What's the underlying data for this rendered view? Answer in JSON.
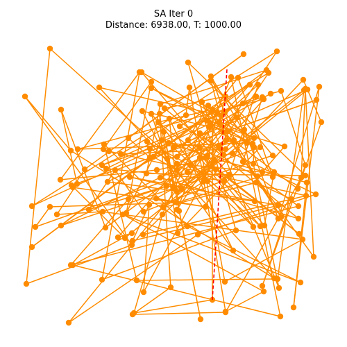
{
  "chart_data": {
    "type": "line",
    "title": "SA Iter 0",
    "subtitle": "Distance: 6938.00, T: 1000.00",
    "xlabel": "",
    "ylabel": "",
    "axes_visible": false,
    "grid": false,
    "colors": {
      "route": "#ff8c00",
      "highlight": "#ff0000"
    },
    "route": [
      [
        72,
        70
      ],
      [
        38,
        409
      ],
      [
        190,
        353
      ],
      [
        36,
        139
      ],
      [
        102,
        217
      ],
      [
        395,
        401
      ],
      [
        143,
        126
      ],
      [
        319,
        167
      ],
      [
        360,
        122
      ],
      [
        46,
        356
      ],
      [
        384,
        101
      ],
      [
        231,
        150
      ],
      [
        211,
        250
      ],
      [
        440,
        253
      ],
      [
        271,
        90
      ],
      [
        340,
        332
      ],
      [
        147,
        403
      ],
      [
        201,
        104
      ],
      [
        87,
        259
      ],
      [
        226,
        245
      ],
      [
        335,
        221
      ],
      [
        455,
        280
      ],
      [
        285,
        338
      ],
      [
        99,
        465
      ],
      [
        322,
        191
      ],
      [
        399,
        74
      ],
      [
        46,
        297
      ],
      [
        303,
        178
      ],
      [
        410,
        211
      ],
      [
        378,
        248
      ],
      [
        255,
        236
      ],
      [
        326,
        202
      ],
      [
        304,
        116
      ],
      [
        393,
        224
      ],
      [
        88,
        325
      ],
      [
        317,
        214
      ],
      [
        380,
        143
      ],
      [
        112,
        215
      ],
      [
        356,
        206
      ],
      [
        316,
        176
      ],
      [
        325,
        139
      ],
      [
        237,
        156
      ],
      [
        430,
        315
      ],
      [
        231,
        256
      ],
      [
        341,
        169
      ],
      [
        155,
        262
      ],
      [
        367,
        290
      ],
      [
        212,
        204
      ],
      [
        216,
        227
      ],
      [
        185,
        199
      ],
      [
        351,
        78
      ],
      [
        122,
        244
      ],
      [
        105,
        270
      ],
      [
        296,
        298
      ],
      [
        225,
        286
      ],
      [
        304,
        240
      ],
      [
        255,
        276
      ],
      [
        218,
        164
      ],
      [
        299,
        261
      ],
      [
        437,
        115
      ],
      [
        463,
        176
      ],
      [
        429,
        272
      ],
      [
        298,
        174
      ],
      [
        369,
        139
      ],
      [
        153,
        243
      ],
      [
        323,
        260
      ],
      [
        207,
        305
      ],
      [
        166,
        245
      ],
      [
        128,
        302
      ],
      [
        240,
        268
      ],
      [
        287,
        212
      ],
      [
        371,
        254
      ],
      [
        430,
        297
      ],
      [
        102,
        382
      ],
      [
        185,
        287
      ],
      [
        311,
        244
      ],
      [
        431,
        337
      ],
      [
        228,
        176
      ],
      [
        306,
        158
      ],
      [
        306,
        432
      ],
      [
        193,
        451
      ],
      [
        234,
        309
      ],
      [
        288,
        192
      ],
      [
        322,
        223
      ],
      [
        206,
        338
      ],
      [
        441,
        282
      ],
      [
        157,
        218
      ],
      [
        149,
        215
      ],
      [
        218,
        118
      ],
      [
        182,
        307
      ],
      [
        233,
        202
      ],
      [
        299,
        224
      ],
      [
        243,
        206
      ],
      [
        325,
        215
      ],
      [
        174,
        222
      ],
      [
        268,
        166
      ],
      [
        273,
        126
      ],
      [
        324,
        406
      ],
      [
        436,
        345
      ],
      [
        148,
        305
      ],
      [
        82,
        309
      ],
      [
        111,
        265
      ],
      [
        88,
        158
      ],
      [
        152,
        328
      ],
      [
        274,
        238
      ],
      [
        365,
        327
      ],
      [
        288,
        227
      ],
      [
        325,
        449
      ],
      [
        380,
        420
      ],
      [
        177,
        309
      ],
      [
        433,
        407
      ],
      [
        270,
        326
      ],
      [
        150,
        208
      ],
      [
        197,
        404
      ],
      [
        400,
        402
      ],
      [
        438,
        130
      ],
      [
        308,
        232
      ],
      [
        207,
        421
      ],
      [
        215,
        295
      ],
      [
        191,
        347
      ],
      [
        401,
        296
      ],
      [
        187,
        255
      ],
      [
        250,
        270
      ],
      [
        236,
        190
      ],
      [
        289,
        460
      ],
      [
        258,
        304
      ],
      [
        244,
        171
      ],
      [
        336,
        361
      ],
      [
        255,
        245
      ],
      [
        221,
        226
      ],
      [
        456,
        144
      ],
      [
        103,
        267
      ],
      [
        180,
        343
      ],
      [
        443,
        129
      ],
      [
        250,
        213
      ],
      [
        375,
        326
      ],
      [
        271,
        202
      ],
      [
        343,
        112
      ],
      [
        393,
        255
      ],
      [
        352,
        187
      ],
      [
        401,
        315
      ],
      [
        460,
        125
      ],
      [
        423,
        443
      ],
      [
        442,
        263
      ],
      [
        297,
        226
      ],
      [
        381,
        325
      ],
      [
        395,
        248
      ],
      [
        255,
        292
      ],
      [
        72,
        298
      ],
      [
        51,
        327
      ],
      [
        375,
        212
      ],
      [
        256,
        336
      ],
      [
        230,
        164
      ],
      [
        246,
        414
      ],
      [
        191,
        453
      ],
      [
        325,
        450
      ],
      [
        434,
        256
      ],
      [
        440,
        128
      ],
      [
        452,
        370
      ],
      [
        291,
        147
      ],
      [
        402,
        415
      ],
      [
        365,
        236
      ],
      [
        366,
        212
      ],
      [
        324,
        162
      ],
      [
        170,
        342
      ],
      [
        190,
        336
      ],
      [
        105,
        382
      ],
      [
        404,
        456
      ],
      [
        333,
        111
      ],
      [
        255,
        302
      ],
      [
        387,
        105
      ],
      [
        259,
        182
      ],
      [
        315,
        210
      ],
      [
        366,
        199
      ],
      [
        218,
        127
      ],
      [
        364,
        207
      ],
      [
        303,
        180
      ],
      [
        302,
        183
      ],
      [
        390,
        135
      ],
      [
        405,
        131
      ],
      [
        440,
        238
      ],
      [
        378,
        412
      ],
      [
        420,
        287
      ],
      [
        369,
        263
      ],
      [
        235,
        299
      ],
      [
        293,
        262
      ],
      [
        313,
        162
      ],
      [
        378,
        140
      ],
      [
        350,
        233
      ],
      [
        304,
        110
      ],
      [
        351,
        189
      ],
      [
        204,
        104
      ],
      [
        330,
        252
      ],
      [
        372,
        122
      ],
      [
        255,
        226
      ],
      [
        300,
        152
      ],
      [
        405,
        313
      ],
      [
        329,
        189
      ],
      [
        205,
        160
      ],
      [
        262,
        272
      ],
      [
        337,
        202
      ],
      [
        241,
        229
      ],
      [
        216,
        214
      ],
      [
        147,
        238
      ],
      [
        350,
        149
      ],
      [
        270,
        248
      ],
      [
        72,
        70
      ]
    ],
    "highlight_segment": [
      [
        327,
        100
      ],
      [
        306,
        432
      ]
    ]
  }
}
